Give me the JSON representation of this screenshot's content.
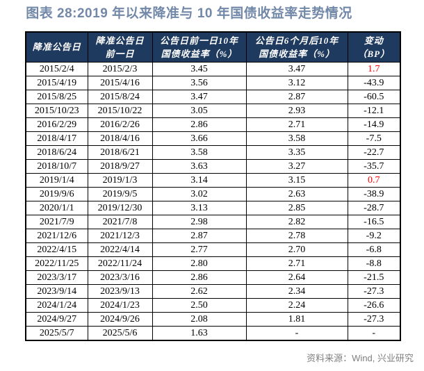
{
  "title": "图表 28:2019 年以来降准与 10 年国债收益率走势情况",
  "colors": {
    "title_text": "#7288A8",
    "header_bg": "#1F3A5F",
    "header_text": "#FFFFFF",
    "border": "#000000",
    "body_text": "#000000",
    "change_positive_red": "#FF0000",
    "source_text": "#7F7F7F"
  },
  "chart_data": {
    "type": "table",
    "title": "图表 28:2019 年以来降准与 10 年国债收益率走势情况",
    "columns": [
      "降准公告日",
      "降准公告日前一日",
      "公告日前一日10年国债收益率（%）",
      "公告日6个月后10年国债收益率（%）",
      "变动（BP）"
    ],
    "column_header_lines": [
      [
        "降准公告日"
      ],
      [
        "降准公告日",
        "前一日"
      ],
      [
        "公告日前一日10年",
        "国债收益率（%）"
      ],
      [
        "公告日6个月后10年",
        "国债收益率（%）"
      ],
      [
        "变动",
        "（BP）"
      ]
    ],
    "rows": [
      [
        "2015/2/4",
        "2015/2/3",
        "3.45",
        "3.47",
        "1.7"
      ],
      [
        "2015/4/19",
        "2015/4/16",
        "3.56",
        "3.12",
        "-43.9"
      ],
      [
        "2015/8/25",
        "2015/8/24",
        "3.47",
        "2.87",
        "-60.5"
      ],
      [
        "2015/10/23",
        "2015/10/22",
        "3.05",
        "2.93",
        "-12.1"
      ],
      [
        "2016/2/29",
        "2016/2/26",
        "2.86",
        "2.71",
        "-14.9"
      ],
      [
        "2018/4/17",
        "2018/4/16",
        "3.66",
        "3.58",
        "-7.5"
      ],
      [
        "2018/6/24",
        "2018/6/21",
        "3.58",
        "3.35",
        "-22.7"
      ],
      [
        "2018/10/7",
        "2018/9/27",
        "3.63",
        "3.27",
        "-35.7"
      ],
      [
        "2019/1/4",
        "2019/1/3",
        "3.14",
        "3.15",
        "0.7"
      ],
      [
        "2019/9/6",
        "2019/9/5",
        "3.02",
        "2.63",
        "-38.9"
      ],
      [
        "2020/1/1",
        "2019/12/30",
        "3.13",
        "2.85",
        "-28.7"
      ],
      [
        "2021/7/9",
        "2021/7/8",
        "2.98",
        "2.82",
        "-16.5"
      ],
      [
        "2021/12/6",
        "2021/12/3",
        "2.87",
        "2.78",
        "-9.2"
      ],
      [
        "2022/4/15",
        "2022/4/14",
        "2.77",
        "2.70",
        "-6.8"
      ],
      [
        "2022/11/25",
        "2022/11/24",
        "2.80",
        "2.71",
        "-8.8"
      ],
      [
        "2023/3/17",
        "2023/3/16",
        "2.86",
        "2.64",
        "-21.5"
      ],
      [
        "2023/9/14",
        "2023/9/13",
        "2.62",
        "2.34",
        "-27.3"
      ],
      [
        "2024/1/24",
        "2024/1/23",
        "2.50",
        "2.24",
        "-26.6"
      ],
      [
        "2024/9/27",
        "2024/9/26",
        "2.08",
        "1.81",
        "-27.3"
      ],
      [
        "2025/5/7",
        "2025/5/6",
        "1.63",
        "-",
        "-"
      ]
    ],
    "red_change_row_indexes": [
      0,
      8
    ],
    "notes": "变动（BP）列中正值（1.7、0.7）以红色显示"
  },
  "footer": {
    "source": "资料来源：Wind, 兴业研究"
  }
}
